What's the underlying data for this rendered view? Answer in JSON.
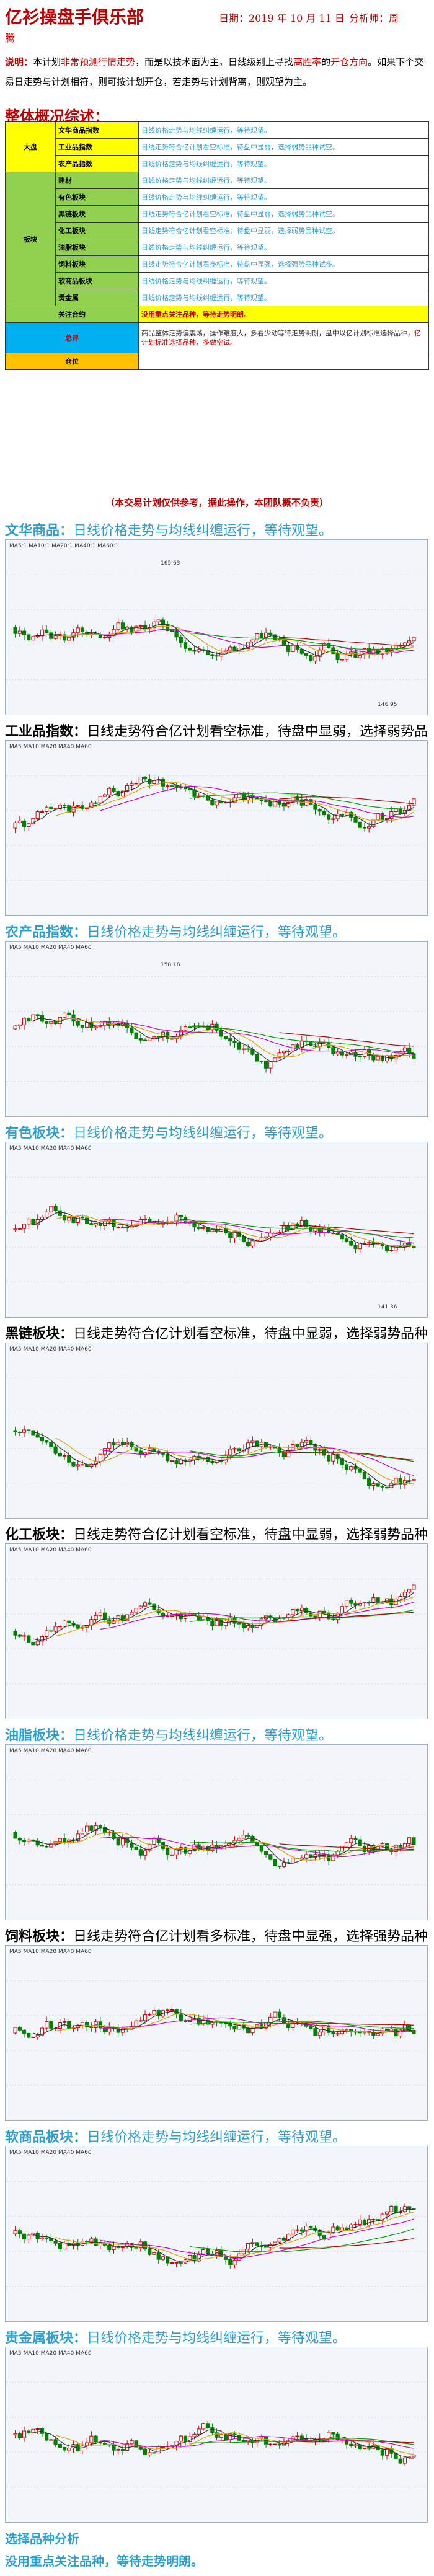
{
  "header": {
    "title": "亿衫操盘手俱乐部",
    "date": "日期：2019 年 10 月 11 日",
    "analyst_label": "分析师：周",
    "analyst_name": "腾"
  },
  "note": {
    "label": "说明：",
    "text1": "本计划",
    "red1": "非常预测行情走势",
    "text2": "，而是以技术面为主，日线级别上寻找",
    "red2": "高胜率",
    "text3": "的",
    "red3": "开仓方向",
    "text4": "。如果下个交易日走势与计划相符，则可按计划开仓，若走势与计划背离，则观望为主。"
  },
  "overview": {
    "title": "整体概况综述：",
    "market_label": "大盘",
    "sector_label": "板块",
    "market_rows": [
      {
        "name": "文华商品指数",
        "desc": "日线价格走势与均线纠缠运行，等待观望。"
      },
      {
        "name": "工业品指数",
        "desc": "日线走势符合亿计划看空标准，待盘中显弱，选择弱势品种试空。"
      },
      {
        "name": "农产品指数",
        "desc": "日线价格走势与均线纠缠运行，等待观望。"
      }
    ],
    "sector_rows": [
      {
        "name": "建材",
        "desc": "日线价格走势与均线纠缠运行，等待观望。"
      },
      {
        "name": "有色板块",
        "desc": "日线价格走势与均线纠缠运行，等待观望。"
      },
      {
        "name": "黑链板块",
        "desc": "日线走势符合亿计划看空标准，待盘中显弱，选择弱势品种试空。"
      },
      {
        "name": "化工板块",
        "desc": "日线走势符合亿计划看空标准，待盘中显弱，选择弱势品种试空。"
      },
      {
        "name": "油脂板块",
        "desc": "日线价格走势与均线纠缠运行，等待观望。"
      },
      {
        "name": "饲料板块",
        "desc": "日线走势符合亿计划看多标准，待盘中显强，选择强势品种试多。"
      },
      {
        "name": "软商品板块",
        "desc": "日线价格走势与均线纠缠运行，等待观望。"
      },
      {
        "name": "贵金属",
        "desc": "日线价格走势与均线纠缠运行，等待观望。"
      }
    ],
    "focus_label": "关注合约",
    "focus_value": "没用重点关注品种，等待走势明朗。",
    "summary_label": "总评",
    "summary_text": "商品整体走势偏震荡，操作难度大，多看少动等待走势明朗，盘中以亿计划标准选择品种，",
    "summary_red": "亿计划标准选择品种，多做空试。",
    "position_label": "仓位",
    "position_value": ""
  },
  "disclaimer": "（本交易计划仅供参考，据此操作，本团队概不负责）",
  "blocks": [
    {
      "key": "文华商品：",
      "text": "日线价格走势与均线纠缠运行，等待观望。",
      "color": "blue",
      "legend": "MA5:1 MA10:1 MA20:1 MA40:1 MA60:1",
      "high": "165.63",
      "low": "146.95"
    },
    {
      "key": "工业品指数：",
      "text": "日线走势符合亿计划看空标准，待盘中显弱，选择弱势品种试空。",
      "color": "black",
      "legend": "MA5 MA10 MA20 MA40 MA60",
      "high": "",
      "low": ""
    },
    {
      "key": "农产品指数：",
      "text": "日线价格走势与均线纠缠运行，等待观望。",
      "color": "blue",
      "legend": "MA5 MA10 MA20 MA40 MA60",
      "high": "158.18",
      "low": ""
    },
    {
      "key": "有色板块：",
      "text": "日线价格走势与均线纠缠运行，等待观望。",
      "color": "blue",
      "legend": "MA5 MA10 MA20 MA40 MA60",
      "high": "",
      "low": "141.36"
    },
    {
      "key": "黑链板块：",
      "text": "日线走势符合亿计划看空标准，待盘中显弱，选择弱势品种试空。",
      "color": "black",
      "legend": "MA5 MA10 MA20 MA40 MA60",
      "high": "",
      "low": ""
    },
    {
      "key": "化工板块：",
      "text": "日线走势符合亿计划看空标准，待盘中显弱，选择弱势品种试空。",
      "color": "black",
      "legend": "MA5 MA10 MA20 MA40 MA60",
      "high": "",
      "low": ""
    },
    {
      "key": "油脂板块：",
      "text": "日线价格走势与均线纠缠运行，等待观望。",
      "color": "blue",
      "legend": "MA5 MA10 MA20 MA40 MA60",
      "high": "",
      "low": ""
    },
    {
      "key": "饲料板块：",
      "text": "日线走势符合亿计划看多标准，待盘中显强，选择强势品种试多。",
      "color": "black",
      "legend": "MA5 MA10 MA20 MA40 MA60",
      "high": "",
      "low": ""
    },
    {
      "key": "软商品板块：",
      "text": "日线价格走势与均线纠缠运行，等待观望。",
      "color": "blue",
      "legend": "MA5 MA10 MA20 MA40 MA60",
      "high": "",
      "low": ""
    },
    {
      "key": "贵金属板块：",
      "text": "日线价格走势与均线纠缠运行，等待观望。",
      "color": "blue",
      "legend": "MA5 MA10 MA20 MA40 MA60",
      "high": "",
      "low": ""
    }
  ],
  "footer": {
    "title": "选择品种分析",
    "text": "没用重点关注品种，等待走势明朗。"
  },
  "colors": {
    "accent_red": "#c00000",
    "text_blue": "#2f9fd0",
    "yellow": "#ffff00",
    "green": "#92d050",
    "cyan": "#00b0f0",
    "orange": "#ffc000",
    "candle_up": "#d40000",
    "candle_down": "#008000"
  }
}
